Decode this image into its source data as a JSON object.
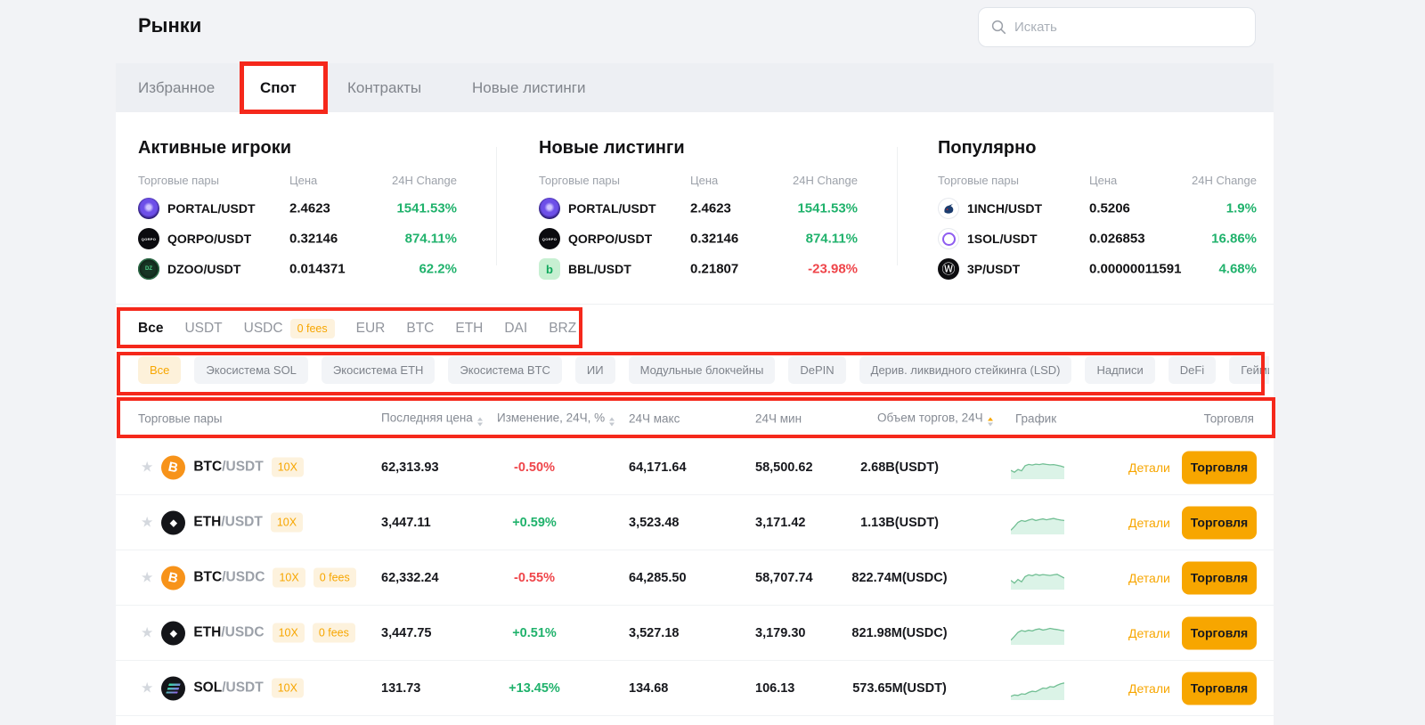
{
  "colors": {
    "accent": "#f7a600",
    "green": "#20b26c",
    "red": "#ef454a",
    "annotation": "#f5281b"
  },
  "header": {
    "title": "Рынки",
    "search_placeholder": "Искать"
  },
  "nav_tabs": {
    "items": [
      {
        "label": "Избранное",
        "active": false
      },
      {
        "label": "Спот",
        "active": true
      },
      {
        "label": "Контракты",
        "active": false
      },
      {
        "label": "Новые листинги",
        "active": false
      }
    ]
  },
  "movers": {
    "panels": [
      {
        "title": "Активные игроки",
        "columns": {
          "pair": "Торговые пары",
          "price": "Цена",
          "change": "24H Change"
        },
        "rows": [
          {
            "icon": "portal-coin-icon",
            "base": "PORTAL",
            "quote": "/USDT",
            "price": "2.4623",
            "change": "1541.53%",
            "trend": "up"
          },
          {
            "icon": "qorpo-coin-icon",
            "base": "QORPO",
            "quote": "/USDT",
            "price": "0.32146",
            "change": "874.11%",
            "trend": "up"
          },
          {
            "icon": "dzoo-coin-icon",
            "base": "DZOO",
            "quote": "/USDT",
            "price": "0.014371",
            "change": "62.2%",
            "trend": "up"
          }
        ]
      },
      {
        "title": "Новые листинги",
        "columns": {
          "pair": "Торговые пары",
          "price": "Цена",
          "change": "24H Change"
        },
        "rows": [
          {
            "icon": "portal-coin-icon",
            "base": "PORTAL",
            "quote": "/USDT",
            "price": "2.4623",
            "change": "1541.53%",
            "trend": "up"
          },
          {
            "icon": "qorpo-coin-icon",
            "base": "QORPO",
            "quote": "/USDT",
            "price": "0.32146",
            "change": "874.11%",
            "trend": "up"
          },
          {
            "icon": "bbl-coin-icon",
            "base": "BBL",
            "quote": "/USDT",
            "price": "0.21807",
            "change": "-23.98%",
            "trend": "down"
          }
        ]
      },
      {
        "title": "Популярно",
        "columns": {
          "pair": "Торговые пары",
          "price": "Цена",
          "change": "24H Change"
        },
        "rows": [
          {
            "icon": "oneinch-coin-icon",
            "base": "1INCH",
            "quote": "/USDT",
            "price": "0.5206",
            "change": "1.9%",
            "trend": "up"
          },
          {
            "icon": "onesol-coin-icon",
            "base": "1SOL",
            "quote": "/USDT",
            "price": "0.026853",
            "change": "16.86%",
            "trend": "up"
          },
          {
            "icon": "threep-coin-icon",
            "base": "3P",
            "quote": "/USDT",
            "price": "0.00000011591",
            "change": "4.68%",
            "trend": "up"
          }
        ]
      }
    ]
  },
  "quote_tabs": {
    "items": [
      {
        "label": "Все",
        "active": true
      },
      {
        "label": "USDT",
        "active": false
      },
      {
        "label": "USDC",
        "active": false,
        "badge": "0 fees"
      },
      {
        "label": "EUR",
        "active": false
      },
      {
        "label": "BTC",
        "active": false
      },
      {
        "label": "ETH",
        "active": false
      },
      {
        "label": "DAI",
        "active": false
      },
      {
        "label": "BRZ",
        "active": false
      }
    ]
  },
  "categories": [
    "Все",
    "Экосистема SOL",
    "Экосистема ETH",
    "Экосистема BTC",
    "ИИ",
    "Модульные блокчейны",
    "DePIN",
    "Дерив. ликвидного стейкинга (LSD)",
    "Надписи",
    "DeFi",
    "Гейминг"
  ],
  "table": {
    "headers": {
      "pair": "Торговые пары",
      "price": "Последняя цена",
      "change": "Изменение, 24Ч, %",
      "high": "24Ч макс",
      "low": "24Ч мин",
      "volume": "Объем торгов, 24Ч",
      "chart": "График",
      "trade": "Торговля"
    },
    "labels": {
      "details": "Детали",
      "trade": "Торговля"
    },
    "rows": [
      {
        "icon": "btc-coin-icon",
        "base": "BTC",
        "quote": "/USDT",
        "badges": [
          "10X"
        ],
        "price": "62,313.93",
        "change": "-0.50%",
        "trend": "down",
        "high": "64,171.64",
        "low": "58,500.62",
        "volume": "2.68B(USDT)",
        "spark": [
          38,
          30,
          42,
          36,
          58,
          64,
          61,
          65,
          63,
          66,
          64,
          62,
          63,
          60,
          57,
          52
        ]
      },
      {
        "icon": "eth-coin-icon",
        "base": "ETH",
        "quote": "/USDT",
        "badges": [
          "10X"
        ],
        "price": "3,447.11",
        "change": "+0.59%",
        "trend": "up",
        "high": "3,523.48",
        "low": "3,171.42",
        "volume": "1.13B(USDT)",
        "spark": [
          18,
          34,
          52,
          60,
          56,
          62,
          66,
          60,
          64,
          67,
          63,
          66,
          69,
          65,
          62,
          60
        ]
      },
      {
        "icon": "btc-coin-icon",
        "base": "BTC",
        "quote": "/USDC",
        "badges": [
          "10X",
          "0 fees"
        ],
        "price": "62,332.24",
        "change": "-0.55%",
        "trend": "down",
        "high": "64,285.50",
        "low": "58,707.74",
        "volume": "822.74M(USDC)",
        "spark": [
          40,
          28,
          44,
          34,
          56,
          64,
          60,
          66,
          62,
          65,
          63,
          61,
          64,
          66,
          58,
          50
        ]
      },
      {
        "icon": "eth-coin-icon",
        "base": "ETH",
        "quote": "/USDC",
        "badges": [
          "10X",
          "0 fees"
        ],
        "price": "3,447.75",
        "change": "+0.51%",
        "trend": "up",
        "high": "3,527.18",
        "low": "3,179.30",
        "volume": "821.98M(USDC)",
        "spark": [
          20,
          36,
          54,
          62,
          58,
          63,
          60,
          66,
          69,
          64,
          67,
          71,
          68,
          66,
          63,
          61
        ]
      },
      {
        "icon": "sol-coin-icon",
        "base": "SOL",
        "quote": "/USDT",
        "badges": [
          "10X"
        ],
        "price": "131.73",
        "change": "+13.45%",
        "trend": "up",
        "high": "134.68",
        "low": "106.13",
        "volume": "573.65M(USDT)",
        "spark": [
          16,
          22,
          20,
          27,
          25,
          33,
          38,
          36,
          44,
          52,
          50,
          58,
          56,
          64,
          70,
          74
        ]
      }
    ]
  }
}
